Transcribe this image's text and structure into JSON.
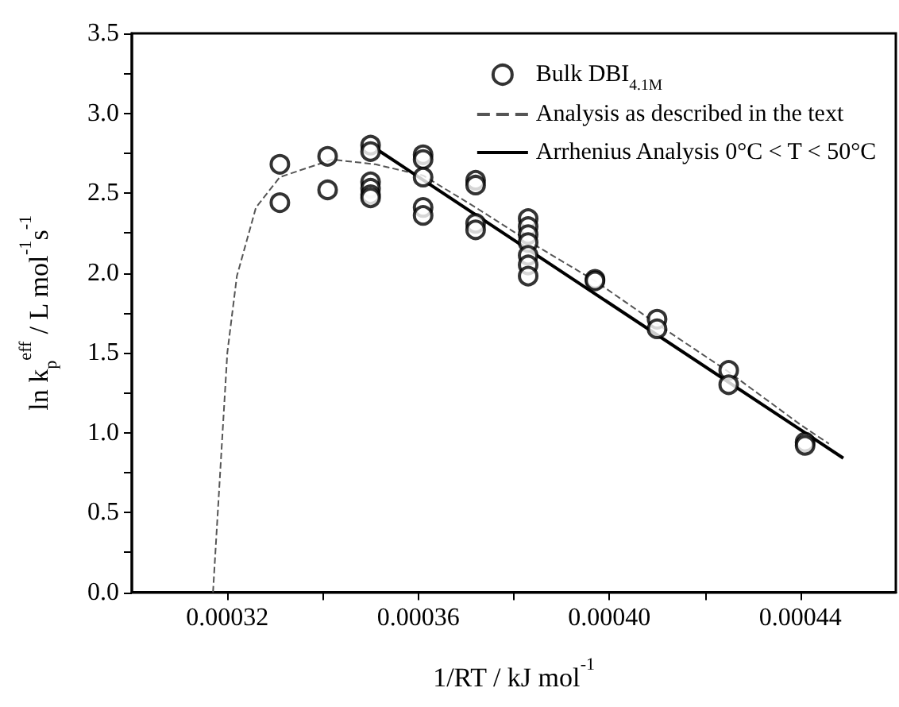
{
  "chart_data": {
    "type": "scatter",
    "xlabel": "1/RT / kJ mol$^{-1}$",
    "ylabel": "ln k$_{p}$$^{eff}$ / L mol$^{-1}$s$^{-1}$",
    "xlim": [
      0.0003,
      0.00046
    ],
    "ylim": [
      0,
      3.5
    ],
    "xticks": [
      0.00032,
      {
        "value": 0.00034,
        "label": null
      },
      0.00036,
      {
        "value": 0.00038,
        "label": null
      },
      {
        "value": 0.0004,
        "label": "0.00040"
      },
      {
        "value": 0.00042,
        "label": null
      },
      0.00044
    ],
    "yticks": [
      {
        "value": 0,
        "label": "0.0"
      },
      {
        "value": 0.25,
        "label": null
      },
      0.5,
      {
        "value": 0.75,
        "label": null
      },
      {
        "value": 1,
        "label": "1.0"
      },
      {
        "value": 1.25,
        "label": null
      },
      1.5,
      {
        "value": 1.75,
        "label": null
      },
      {
        "value": 2,
        "label": "2.0"
      },
      {
        "value": 2.25,
        "label": null
      },
      2.5,
      {
        "value": 2.75,
        "label": null
      },
      {
        "value": 3,
        "label": "3.0"
      },
      {
        "value": 3.25,
        "label": null
      },
      3.5
    ],
    "grid": false,
    "legend": "top right",
    "series": [
      {
        "name": "Bulk DBI$_{4.1M}$",
        "marker": "circle",
        "color": "#000000",
        "x": [
          0.000331,
          0.000331,
          0.000341,
          0.000341,
          0.00035,
          0.00035,
          0.00035,
          0.00035,
          0.00035,
          0.00035,
          0.000361,
          0.000361,
          0.000361,
          0.000361,
          0.000361,
          0.000372,
          0.000372,
          0.000372,
          0.000372,
          0.000383,
          0.000383,
          0.000383,
          0.000383,
          0.000383,
          0.000383,
          0.000383,
          0.000397,
          0.000397,
          0.00041,
          0.00041,
          0.000425,
          0.000425,
          0.000441,
          0.000441
        ],
        "values": [
          2.68,
          2.44,
          2.73,
          2.52,
          2.8,
          2.76,
          2.57,
          2.53,
          2.49,
          2.47,
          2.74,
          2.71,
          2.6,
          2.41,
          2.36,
          2.58,
          2.55,
          2.31,
          2.27,
          2.34,
          2.29,
          2.24,
          2.19,
          2.11,
          2.05,
          1.98,
          1.96,
          1.95,
          1.71,
          1.65,
          1.39,
          1.3,
          0.94,
          0.92
        ]
      },
      {
        "name": "Analysis as described in the text",
        "type": "line",
        "marker": "none",
        "line_style": "dashed",
        "color": "#555555",
        "x": [
          0.000317,
          0.000318,
          0.000319,
          0.00032,
          0.000322,
          0.000326,
          0.000331,
          0.000342,
          0.000351,
          0.000361,
          0.000372,
          0.000383,
          0.000397,
          0.00041,
          0.000425,
          0.00044,
          0.000446
        ],
        "values": [
          0,
          0.5,
          1.0,
          1.5,
          1.98,
          2.41,
          2.6,
          2.71,
          2.68,
          2.61,
          2.41,
          2.2,
          1.95,
          1.68,
          1.38,
          1.05,
          0.93
        ]
      },
      {
        "name": "Arrhenius Analysis 0°C < T < 50°C",
        "type": "line",
        "marker": "none",
        "line_style": "solid",
        "color": "#000000",
        "x": [
          0.000351,
          0.000449
        ],
        "values": [
          2.78,
          0.84
        ]
      }
    ]
  }
}
